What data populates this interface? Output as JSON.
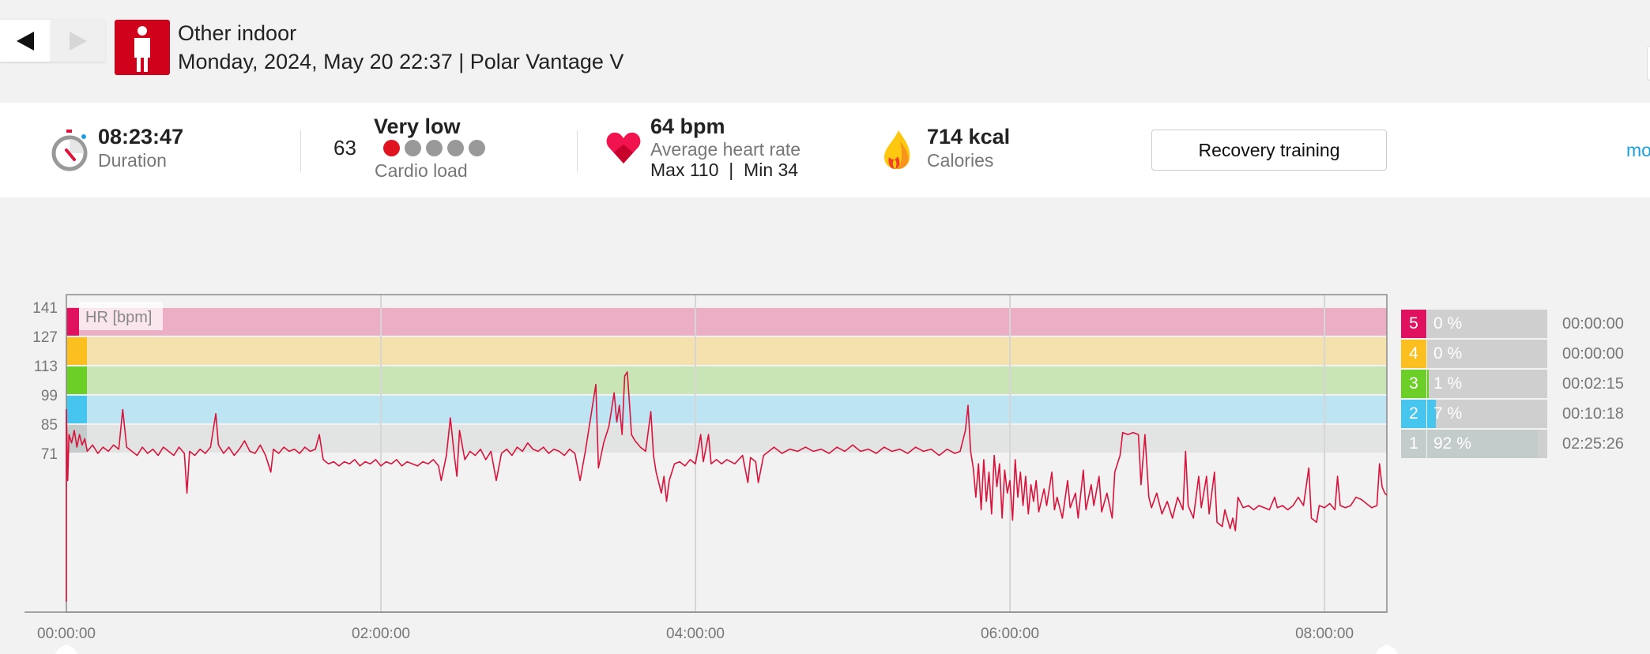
{
  "header": {
    "back_icon": "triangle-left-icon",
    "forward_icon": "triangle-right-icon",
    "sport_icon": "person-standing-icon",
    "sport": "Other indoor",
    "subtitle": "Monday, 2024, May 20 22:37 | Polar Vantage V",
    "accent": "#d0021b"
  },
  "stats": {
    "duration": {
      "value": "08:23:47",
      "label": "Duration",
      "icon": "stopwatch-icon"
    },
    "cardio_load": {
      "value": "63",
      "level": "Very low",
      "label": "Cardio load",
      "level_dots_filled": 1,
      "level_dots_total": 5
    },
    "heart_rate": {
      "value": "64 bpm",
      "label": "Average heart rate",
      "max_min": "Max 110  |  Min 34",
      "icon": "heart-icon"
    },
    "calories": {
      "value": "714 kcal",
      "label": "Calories",
      "icon": "flame-icon"
    },
    "benefit_button": "Recovery training",
    "more_link": "mo"
  },
  "zones": [
    {
      "zone": "5",
      "percent_label": "0 %",
      "percent": 0,
      "time": "00:00:00",
      "color": "#e0115f",
      "band": "#ecaec4",
      "range": [
        127,
        141
      ]
    },
    {
      "zone": "4",
      "percent_label": "0 %",
      "percent": 0,
      "time": "00:00:00",
      "color": "#fbbf1f",
      "band": "#f5e1ad",
      "range": [
        113,
        127
      ]
    },
    {
      "zone": "3",
      "percent_label": "1 %",
      "percent": 1,
      "time": "00:02:15",
      "color": "#6ccf28",
      "band": "#cae5b5",
      "range": [
        99,
        113
      ]
    },
    {
      "zone": "2",
      "percent_label": "7 %",
      "percent": 7,
      "time": "00:10:18",
      "color": "#46c5ee",
      "band": "#bde4f2",
      "range": [
        85,
        99
      ]
    },
    {
      "zone": "1",
      "percent_label": "92 %",
      "percent": 92,
      "time": "02:25:26",
      "color": "#c4cbcb",
      "band": "#e2e4e3",
      "range": [
        71,
        85
      ]
    }
  ],
  "chart_data": {
    "type": "line",
    "series_label": "HR [bpm]",
    "line_color": "#d8143c",
    "y_ticks": [
      "141",
      "127",
      "113",
      "99",
      "85",
      "71"
    ],
    "x_ticks": [
      "00:00:00",
      "02:00:00",
      "04:00:00",
      "06:00:00",
      "08:00:00"
    ],
    "x_tick_minutes": [
      0,
      120,
      240,
      360,
      480
    ],
    "x_unit": "minutes elapsed",
    "xlim": [
      0,
      503.8
    ],
    "ylim": [
      -5,
      147
    ],
    "grid": "vertical",
    "points": [
      [
        0,
        0
      ],
      [
        0,
        92
      ],
      [
        0.5,
        58
      ],
      [
        1,
        80
      ],
      [
        2,
        76
      ],
      [
        3,
        82
      ],
      [
        4,
        74
      ],
      [
        5,
        80
      ],
      [
        6,
        75
      ],
      [
        7,
        78
      ],
      [
        8,
        72
      ],
      [
        10,
        75
      ],
      [
        12,
        71
      ],
      [
        14,
        74
      ],
      [
        16,
        72
      ],
      [
        18,
        75
      ],
      [
        20,
        73
      ],
      [
        21.5,
        92
      ],
      [
        23,
        74
      ],
      [
        25,
        72
      ],
      [
        27,
        70
      ],
      [
        29,
        74
      ],
      [
        31,
        71
      ],
      [
        33,
        73
      ],
      [
        35,
        70
      ],
      [
        37,
        74
      ],
      [
        39,
        72
      ],
      [
        41,
        70
      ],
      [
        43,
        74
      ],
      [
        45,
        71
      ],
      [
        46,
        52
      ],
      [
        47,
        72
      ],
      [
        49,
        70
      ],
      [
        51,
        73
      ],
      [
        53,
        71
      ],
      [
        55,
        74
      ],
      [
        57,
        90
      ],
      [
        58,
        75
      ],
      [
        60,
        71
      ],
      [
        62,
        74
      ],
      [
        64,
        70
      ],
      [
        66,
        73
      ],
      [
        68,
        77
      ],
      [
        70,
        72
      ],
      [
        72,
        71
      ],
      [
        74,
        75
      ],
      [
        76,
        70
      ],
      [
        78,
        62
      ],
      [
        79,
        73
      ],
      [
        81,
        71
      ],
      [
        83,
        74
      ],
      [
        85,
        72
      ],
      [
        87,
        73
      ],
      [
        89,
        71
      ],
      [
        91,
        74
      ],
      [
        93,
        72
      ],
      [
        95,
        73
      ],
      [
        96.5,
        80
      ],
      [
        98,
        68
      ],
      [
        100,
        66
      ],
      [
        102,
        67
      ],
      [
        104,
        65
      ],
      [
        106,
        67
      ],
      [
        108,
        66
      ],
      [
        110,
        68
      ],
      [
        112,
        65
      ],
      [
        114,
        67
      ],
      [
        116,
        66
      ],
      [
        118,
        68
      ],
      [
        120,
        65
      ],
      [
        122,
        67
      ],
      [
        124,
        66
      ],
      [
        126,
        68
      ],
      [
        128,
        65
      ],
      [
        130,
        67
      ],
      [
        132,
        66
      ],
      [
        134,
        65
      ],
      [
        136,
        67
      ],
      [
        138,
        66
      ],
      [
        140,
        68
      ],
      [
        142,
        65
      ],
      [
        143,
        58
      ],
      [
        145,
        70
      ],
      [
        146.5,
        88
      ],
      [
        148,
        70
      ],
      [
        149,
        60
      ],
      [
        150,
        82
      ],
      [
        152,
        68
      ],
      [
        154,
        72
      ],
      [
        156,
        70
      ],
      [
        158,
        73
      ],
      [
        160,
        68
      ],
      [
        162,
        72
      ],
      [
        164,
        58
      ],
      [
        166,
        71
      ],
      [
        168,
        73
      ],
      [
        170,
        70
      ],
      [
        172,
        74
      ],
      [
        174,
        72
      ],
      [
        176,
        76
      ],
      [
        178,
        73
      ],
      [
        180,
        72
      ],
      [
        182,
        74
      ],
      [
        184,
        71
      ],
      [
        186,
        73
      ],
      [
        188,
        72
      ],
      [
        190,
        70
      ],
      [
        192,
        73
      ],
      [
        194,
        71
      ],
      [
        196,
        58
      ],
      [
        198,
        72
      ],
      [
        200,
        88
      ],
      [
        202,
        104
      ],
      [
        203,
        64
      ],
      [
        205,
        76
      ],
      [
        207,
        84
      ],
      [
        209,
        100
      ],
      [
        210,
        86
      ],
      [
        211,
        94
      ],
      [
        212,
        80
      ],
      [
        213,
        108
      ],
      [
        214,
        110
      ],
      [
        215,
        92
      ],
      [
        215.6,
        80
      ],
      [
        217,
        77
      ],
      [
        219,
        74
      ],
      [
        221,
        72
      ],
      [
        223,
        91
      ],
      [
        224,
        70
      ],
      [
        225,
        62
      ],
      [
        227,
        52
      ],
      [
        228,
        60
      ],
      [
        229,
        48
      ],
      [
        230,
        58
      ],
      [
        232,
        66
      ],
      [
        234,
        67
      ],
      [
        236,
        65
      ],
      [
        238,
        68
      ],
      [
        240,
        66
      ],
      [
        242,
        80
      ],
      [
        243,
        67
      ],
      [
        245,
        80
      ],
      [
        246,
        66
      ],
      [
        248,
        68
      ],
      [
        250,
        66
      ],
      [
        252,
        68
      ],
      [
        255,
        66
      ],
      [
        258,
        70
      ],
      [
        260,
        57
      ],
      [
        261,
        69
      ],
      [
        263,
        67
      ],
      [
        264,
        57
      ],
      [
        266,
        70
      ],
      [
        268,
        72
      ],
      [
        270,
        74
      ],
      [
        273,
        71
      ],
      [
        276,
        73
      ],
      [
        279,
        72
      ],
      [
        282,
        74
      ],
      [
        285,
        72
      ],
      [
        288,
        73
      ],
      [
        291,
        71
      ],
      [
        294,
        74
      ],
      [
        297,
        72
      ],
      [
        300,
        75
      ],
      [
        303,
        72
      ],
      [
        306,
        73
      ],
      [
        309,
        71
      ],
      [
        312,
        74
      ],
      [
        315,
        72
      ],
      [
        318,
        73
      ],
      [
        321,
        71
      ],
      [
        324,
        74
      ],
      [
        327,
        72
      ],
      [
        330,
        73
      ],
      [
        333,
        70
      ],
      [
        336,
        73
      ],
      [
        339,
        71
      ],
      [
        341,
        72
      ],
      [
        343,
        82
      ],
      [
        344,
        94
      ],
      [
        345,
        72
      ],
      [
        346,
        64
      ],
      [
        347,
        50
      ],
      [
        348,
        66
      ],
      [
        349,
        44
      ],
      [
        350,
        68
      ],
      [
        351,
        48
      ],
      [
        352,
        62
      ],
      [
        353,
        42
      ],
      [
        354,
        70
      ],
      [
        355,
        55
      ],
      [
        356,
        66
      ],
      [
        357,
        40
      ],
      [
        358,
        63
      ],
      [
        359,
        52
      ],
      [
        360,
        58
      ],
      [
        361,
        39
      ],
      [
        362,
        68
      ],
      [
        363,
        50
      ],
      [
        364,
        62
      ],
      [
        365,
        46
      ],
      [
        366,
        60
      ],
      [
        367,
        42
      ],
      [
        368,
        56
      ],
      [
        369,
        48
      ],
      [
        370,
        58
      ],
      [
        371,
        43
      ],
      [
        373,
        54
      ],
      [
        374,
        46
      ],
      [
        376,
        62
      ],
      [
        377,
        44
      ],
      [
        378,
        50
      ],
      [
        380,
        40
      ],
      [
        382,
        58
      ],
      [
        383,
        45
      ],
      [
        385,
        52
      ],
      [
        386,
        40
      ],
      [
        388,
        63
      ],
      [
        389,
        44
      ],
      [
        391,
        56
      ],
      [
        392,
        46
      ],
      [
        394,
        60
      ],
      [
        395,
        43
      ],
      [
        397,
        52
      ],
      [
        399,
        40
      ],
      [
        400,
        62
      ],
      [
        402,
        70
      ],
      [
        403,
        81
      ],
      [
        405,
        80
      ],
      [
        407,
        81
      ],
      [
        409,
        80
      ],
      [
        410,
        56
      ],
      [
        411.5,
        80
      ],
      [
        413,
        50
      ],
      [
        414,
        45
      ],
      [
        416,
        52
      ],
      [
        418,
        42
      ],
      [
        420,
        48
      ],
      [
        422,
        40
      ],
      [
        424,
        50
      ],
      [
        426,
        44
      ],
      [
        427,
        72
      ],
      [
        428,
        46
      ],
      [
        430,
        40
      ],
      [
        432,
        60
      ],
      [
        433,
        45
      ],
      [
        435,
        60
      ],
      [
        436,
        42
      ],
      [
        438,
        62
      ],
      [
        439,
        38
      ],
      [
        441,
        36
      ],
      [
        442,
        44
      ],
      [
        444,
        35
      ],
      [
        445,
        40
      ],
      [
        446,
        34
      ],
      [
        447,
        50
      ],
      [
        449,
        45
      ],
      [
        451,
        46
      ],
      [
        453,
        44
      ],
      [
        455,
        46
      ],
      [
        457,
        45
      ],
      [
        459,
        44
      ],
      [
        461,
        50
      ],
      [
        462,
        45
      ],
      [
        464,
        46
      ],
      [
        466,
        44
      ],
      [
        468,
        46
      ],
      [
        470,
        50
      ],
      [
        472,
        46
      ],
      [
        474,
        64
      ],
      [
        475,
        40
      ],
      [
        477,
        38
      ],
      [
        478,
        46
      ],
      [
        480,
        45
      ],
      [
        482,
        47
      ],
      [
        484,
        44
      ],
      [
        485,
        60
      ],
      [
        486,
        46
      ],
      [
        488,
        45
      ],
      [
        490,
        46
      ],
      [
        492,
        50
      ],
      [
        494,
        49
      ],
      [
        496,
        47
      ],
      [
        498,
        45
      ],
      [
        500,
        46
      ],
      [
        501,
        66
      ],
      [
        502,
        55
      ],
      [
        503,
        52
      ],
      [
        503.8,
        51
      ]
    ]
  }
}
